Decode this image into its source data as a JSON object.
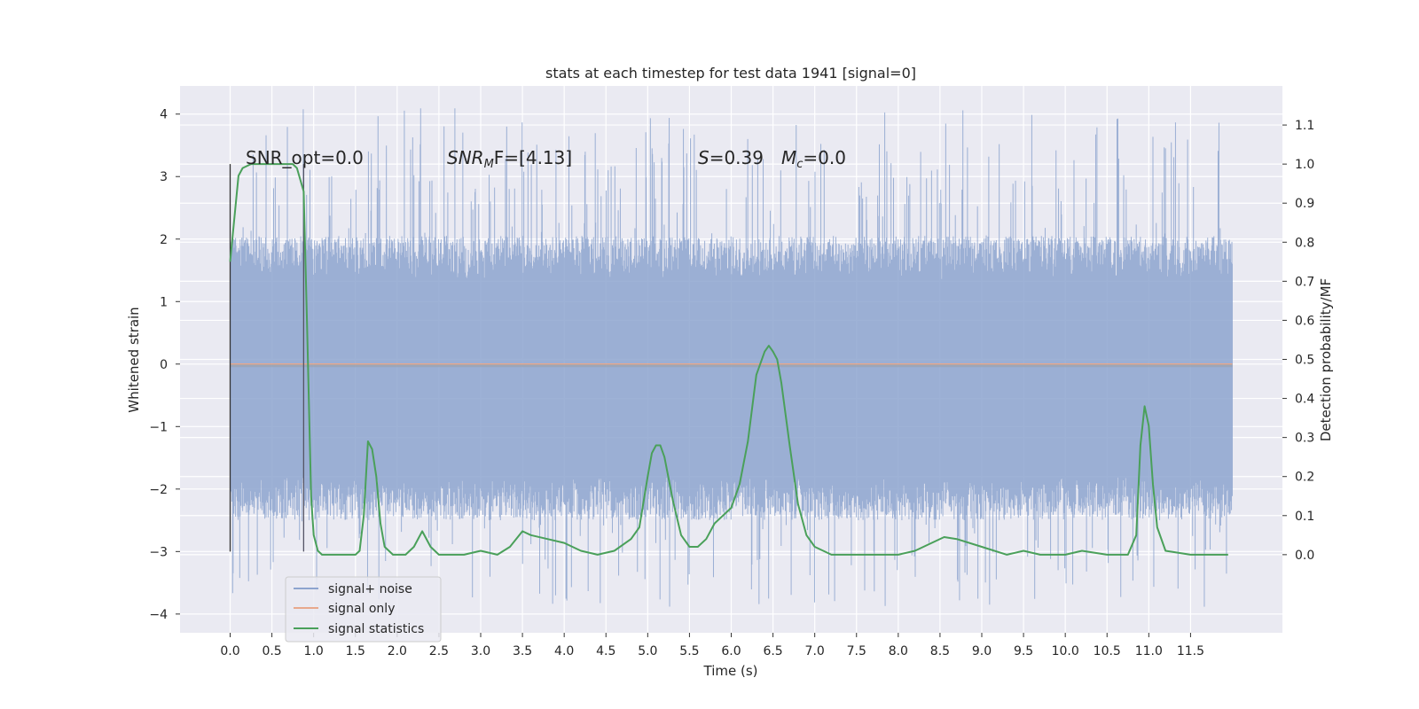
{
  "chart_data": {
    "type": "line",
    "title": "stats at each timestep for test data 1941 [signal=0]",
    "xlabel": "Time (s)",
    "ylabel": "Whitened strain",
    "ylabel_right": "Detection probability/MF",
    "xlim": [
      -0.6,
      12.6
    ],
    "ylim": [
      -4.3,
      4.45
    ],
    "ylim_right": [
      -0.2,
      1.2
    ],
    "x_ticks": [
      "0.0",
      "0.5",
      "1.0",
      "1.5",
      "2.0",
      "2.5",
      "3.0",
      "3.5",
      "4.0",
      "4.5",
      "5.0",
      "5.5",
      "6.0",
      "6.5",
      "7.0",
      "7.5",
      "8.0",
      "8.5",
      "9.0",
      "9.5",
      "10.0",
      "10.5",
      "11.0",
      "11.5"
    ],
    "y_ticks": [
      "4",
      "3",
      "2",
      "1",
      "0",
      "−1",
      "−2",
      "−3",
      "−4"
    ],
    "y_ticks_right": [
      "1.1",
      "1.0",
      "0.9",
      "0.8",
      "0.7",
      "0.6",
      "0.5",
      "0.4",
      "0.3",
      "0.2",
      "0.1",
      "0.0"
    ],
    "grid": true,
    "legend_position": "lower-left",
    "annotations": {
      "snr_opt": "SNR_opt=0.0",
      "snr_mf_name": "SNR",
      "snr_mf_sub": "M",
      "snr_mf_rest": "F=[4.13]",
      "s_name": "S",
      "s_rest": "=0.39",
      "mc_name": "M",
      "mc_sub": "c",
      "mc_rest": "=0.0"
    },
    "series": [
      {
        "name": "signal+ noise",
        "color": "#8da4cf",
        "x_range": [
          0.0,
          12.0
        ],
        "typical_range": [
          -1.8,
          1.35
        ],
        "peak_range": [
          -3.9,
          4.1
        ]
      },
      {
        "name": "signal only",
        "color": "#e8a88c",
        "x": [
          0.0,
          12.0
        ],
        "y": [
          0.0,
          0.0
        ]
      },
      {
        "name": "signal statistics",
        "color": "#4aa05a",
        "axis": "right",
        "x": [
          0.0,
          0.1,
          0.15,
          0.25,
          0.5,
          0.75,
          0.8,
          0.88,
          0.92,
          0.97,
          1.0,
          1.05,
          1.1,
          1.2,
          1.3,
          1.4,
          1.5,
          1.55,
          1.6,
          1.65,
          1.7,
          1.75,
          1.8,
          1.85,
          1.95,
          2.1,
          2.2,
          2.3,
          2.4,
          2.5,
          2.6,
          2.8,
          3.0,
          3.2,
          3.35,
          3.5,
          3.6,
          3.8,
          4.0,
          4.2,
          4.4,
          4.6,
          4.8,
          4.9,
          5.0,
          5.05,
          5.1,
          5.15,
          5.2,
          5.3,
          5.4,
          5.5,
          5.6,
          5.7,
          5.8,
          5.9,
          6.0,
          6.1,
          6.2,
          6.3,
          6.4,
          6.45,
          6.5,
          6.55,
          6.6,
          6.7,
          6.8,
          6.9,
          7.0,
          7.2,
          7.5,
          8.0,
          8.2,
          8.4,
          8.55,
          8.7,
          9.0,
          9.3,
          9.5,
          9.7,
          10.0,
          10.2,
          10.5,
          10.75,
          10.85,
          10.9,
          10.95,
          11.0,
          11.05,
          11.1,
          11.2,
          11.5,
          11.95
        ],
        "y": [
          0.75,
          0.97,
          0.99,
          1.0,
          1.0,
          1.0,
          0.99,
          0.93,
          0.6,
          0.15,
          0.05,
          0.01,
          0.0,
          0.0,
          0.0,
          0.0,
          0.0,
          0.01,
          0.1,
          0.29,
          0.27,
          0.2,
          0.08,
          0.02,
          0.0,
          0.0,
          0.02,
          0.06,
          0.02,
          0.0,
          0.0,
          0.0,
          0.01,
          0.0,
          0.02,
          0.06,
          0.05,
          0.04,
          0.03,
          0.01,
          0.0,
          0.01,
          0.04,
          0.07,
          0.2,
          0.26,
          0.28,
          0.28,
          0.25,
          0.14,
          0.05,
          0.02,
          0.02,
          0.04,
          0.08,
          0.1,
          0.12,
          0.18,
          0.29,
          0.46,
          0.52,
          0.535,
          0.52,
          0.5,
          0.44,
          0.28,
          0.13,
          0.05,
          0.02,
          0.0,
          0.0,
          0.0,
          0.01,
          0.03,
          0.045,
          0.04,
          0.02,
          0.0,
          0.01,
          0.0,
          0.0,
          0.01,
          0.0,
          0.0,
          0.05,
          0.28,
          0.38,
          0.33,
          0.18,
          0.07,
          0.01,
          0.0,
          0.0
        ]
      }
    ],
    "vertical_markers": [
      {
        "x": 0.0,
        "y_range": [
          -3.0,
          3.2
        ],
        "color": "#333333"
      },
      {
        "x": 0.88,
        "y_range": [
          -3.0,
          3.2
        ],
        "color": "#555566"
      }
    ]
  }
}
